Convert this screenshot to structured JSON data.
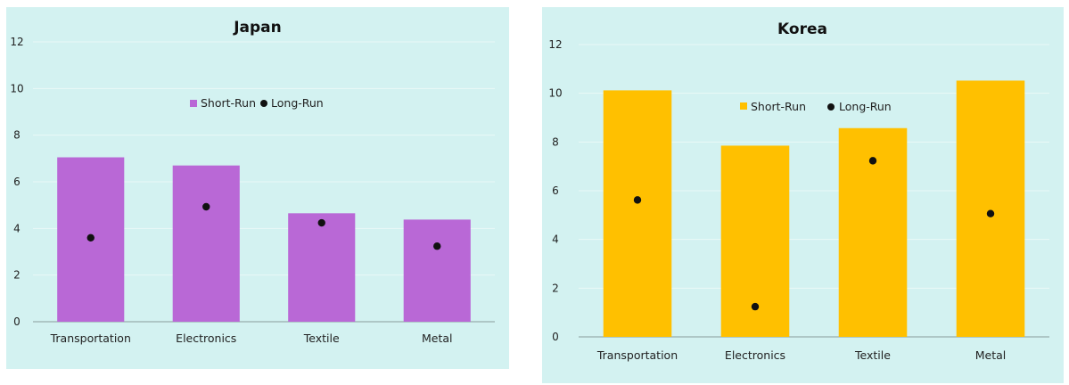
{
  "chart_data": [
    {
      "type": "bar",
      "title": "Japan",
      "categories": [
        "Transportation",
        "Electronics",
        "Textile",
        "Metal"
      ],
      "series": [
        {
          "name": "Short-Run",
          "type": "bar",
          "values": [
            7.05,
            6.7,
            4.65,
            4.38
          ],
          "color": "#b968d6"
        },
        {
          "name": "Long-Run",
          "type": "scatter",
          "values": [
            3.6,
            4.93,
            4.24,
            3.24
          ],
          "color": "#111111"
        }
      ],
      "yticks": [
        "0",
        "2",
        "4",
        "6",
        "8",
        "10",
        "12"
      ],
      "ylim": [
        0,
        12
      ],
      "grid": true,
      "legend": "center"
    },
    {
      "type": "bar",
      "title": "Korea",
      "categories": [
        "Transportation",
        "Electronics",
        "Textile",
        "Metal"
      ],
      "series": [
        {
          "name": "Short-Run",
          "type": "bar",
          "values": [
            10.12,
            7.85,
            8.57,
            10.52
          ],
          "color": "#ffc000"
        },
        {
          "name": "Long-Run",
          "type": "scatter",
          "values": [
            5.62,
            1.24,
            7.23,
            5.06
          ],
          "color": "#111111"
        }
      ],
      "yticks": [
        "0",
        "2",
        "4",
        "6",
        "8",
        "10",
        "12"
      ],
      "ylim": [
        0,
        12
      ],
      "grid": true,
      "legend": "center"
    }
  ]
}
